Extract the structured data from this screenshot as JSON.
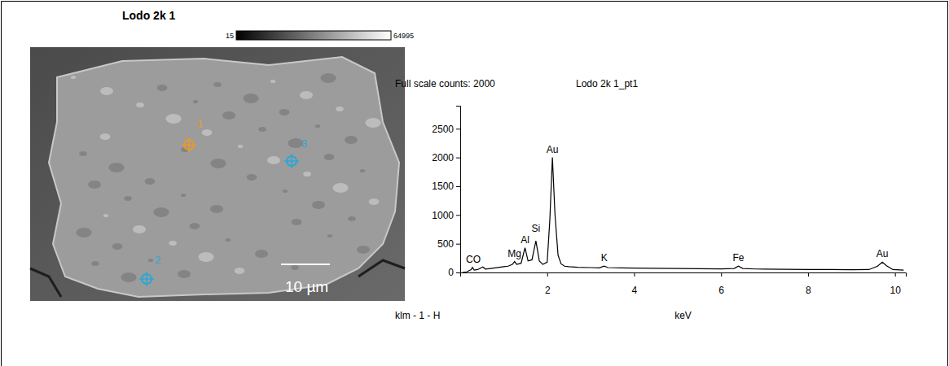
{
  "chart_data": {
    "type": "line",
    "title": "Lodo 2k 1_pt1",
    "subtitle": "Full scale counts: 2000",
    "xlabel": "keV",
    "caption": "klm - 1 - H",
    "color": "#000000",
    "x": [
      0.05,
      0.15,
      0.25,
      0.28,
      0.32,
      0.4,
      0.52,
      0.58,
      0.7,
      0.8,
      0.9,
      1.0,
      1.1,
      1.2,
      1.25,
      1.3,
      1.4,
      1.49,
      1.56,
      1.65,
      1.74,
      1.82,
      1.9,
      2.0,
      2.06,
      2.12,
      2.18,
      2.25,
      2.32,
      2.4,
      2.5,
      2.7,
      3.0,
      3.2,
      3.31,
      3.4,
      3.7,
      4.0,
      4.5,
      5.0,
      5.5,
      6.0,
      6.3,
      6.4,
      6.5,
      6.8,
      7.0,
      7.5,
      8.0,
      8.5,
      9.0,
      9.4,
      9.6,
      9.71,
      9.8,
      9.95,
      10.2
    ],
    "values": [
      0,
      10,
      50,
      90,
      40,
      50,
      95,
      60,
      70,
      80,
      90,
      100,
      110,
      140,
      190,
      140,
      160,
      430,
      200,
      220,
      550,
      200,
      140,
      180,
      900,
      2000,
      1000,
      300,
      150,
      110,
      100,
      90,
      85,
      80,
      110,
      85,
      80,
      75,
      72,
      68,
      65,
      62,
      70,
      110,
      70,
      60,
      58,
      55,
      52,
      50,
      48,
      50,
      110,
      180,
      120,
      50,
      40
    ],
    "xlim": [
      0,
      10.25
    ],
    "xticks": [
      2,
      4,
      6,
      8,
      10
    ],
    "ylim": [
      0,
      2900
    ],
    "yticks": [
      0,
      500,
      1000,
      1500,
      2000,
      2500
    ],
    "annotations": [
      {
        "text": "CO",
        "x": 0.3
      },
      {
        "text": "Mg",
        "x": 1.25
      },
      {
        "text": "Al",
        "x": 1.49
      },
      {
        "text": "Si",
        "x": 1.74
      },
      {
        "text": "Au",
        "x": 2.12
      },
      {
        "text": "K",
        "x": 3.31
      },
      {
        "text": "Fe",
        "x": 6.4
      },
      {
        "text": "Au",
        "x": 9.71
      }
    ]
  },
  "micrograph": {
    "title": "Lodo 2k 1",
    "colorbar": {
      "min": 15,
      "max": 64995
    },
    "scale_bar": "10 µm",
    "points": [
      {
        "label": "1",
        "color": "#e69a2e"
      },
      {
        "label": "2",
        "color": "#2aa7d6"
      },
      {
        "label": "3",
        "color": "#2aa7d6"
      }
    ]
  }
}
